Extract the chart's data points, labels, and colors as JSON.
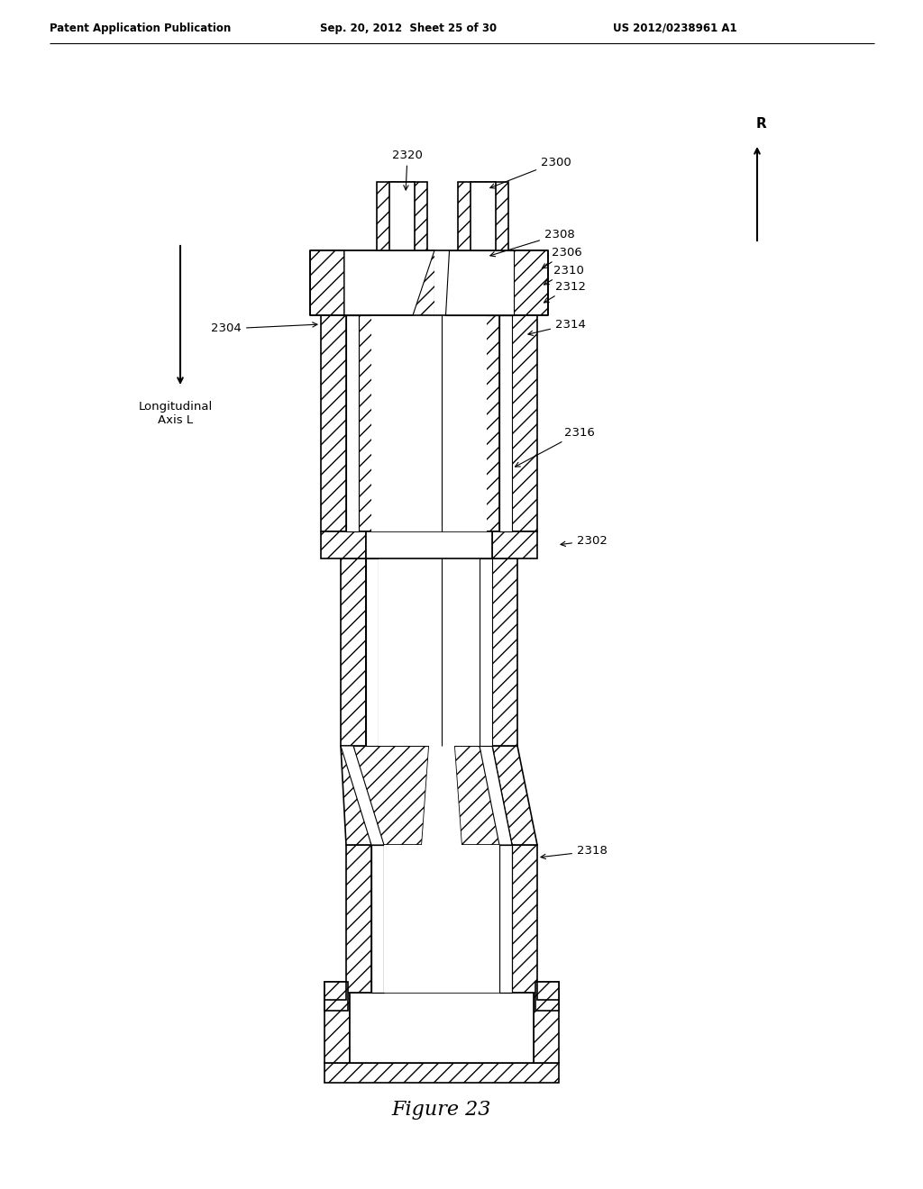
{
  "header_left": "Patent Application Publication",
  "header_center": "Sep. 20, 2012  Sheet 25 of 30",
  "header_right": "US 2012/0238961 A1",
  "figure_caption": "Figure 23",
  "bg_color": "#ffffff"
}
